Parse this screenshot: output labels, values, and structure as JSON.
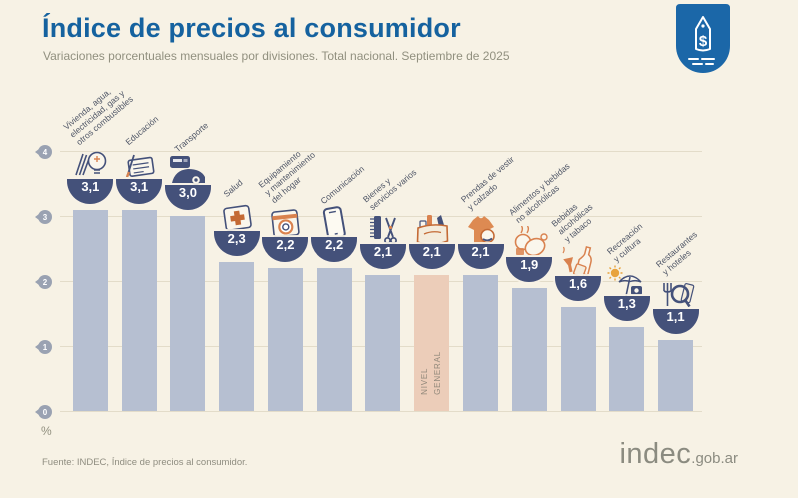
{
  "header": {
    "title": "Índice de precios al consumidor",
    "subtitle": "Variaciones porcentuales mensuales por divisiones. Total nacional. Septiembre de 2025",
    "badge_icon": "price-tag-shield-icon"
  },
  "chart_data": {
    "type": "bar",
    "title": "Índice de precios al consumidor",
    "subtitle": "Variaciones porcentuales mensuales por divisiones. Total nacional. Septiembre de 2025",
    "unit": "%",
    "ylim": [
      0,
      4
    ],
    "yticks_top_down": [
      "4",
      "3",
      "2",
      "1",
      "0"
    ],
    "grid": true,
    "highlight_category": "Nivel general",
    "categories": [
      "Vivienda, agua, electricidad, gas y otros combustibles",
      "Educación",
      "Transporte",
      "Salud",
      "Equipamiento y mantenimiento del hogar",
      "Comunicación",
      "Bienes y servicios varios",
      "Nivel general",
      "Prendas de vestir y calzado",
      "Alimentos y bebidas no alcohólicas",
      "Bebidas alcohólicas y tabaco",
      "Recreación y cultura",
      "Restaurantes y hoteles"
    ],
    "values": [
      3.1,
      3.1,
      3.0,
      2.3,
      2.2,
      2.2,
      2.1,
      2.1,
      2.1,
      1.9,
      1.6,
      1.3,
      1.1
    ],
    "bars": [
      {
        "label": "Vivienda, agua,\nelectricidad, gas y\notros combustibles",
        "value": 3.1,
        "display": "3,1",
        "icon": "housing-utilities-icon",
        "highlight": false
      },
      {
        "label": "Educación",
        "value": 3.1,
        "display": "3,1",
        "icon": "education-icon",
        "highlight": false
      },
      {
        "label": "Transporte",
        "value": 3.0,
        "display": "3,0",
        "icon": "transport-icon",
        "highlight": false
      },
      {
        "label": "Salud",
        "value": 2.3,
        "display": "2,3",
        "icon": "health-icon",
        "highlight": false
      },
      {
        "label": "Equipamiento\ny mantenimiento\ndel hogar",
        "value": 2.2,
        "display": "2,2",
        "icon": "home-equipment-icon",
        "highlight": false
      },
      {
        "label": "Comunicación",
        "value": 2.2,
        "display": "2,2",
        "icon": "communication-icon",
        "highlight": false
      },
      {
        "label": "Bienes y\nservicios varios",
        "value": 2.1,
        "display": "2,1",
        "icon": "goods-services-icon",
        "highlight": false
      },
      {
        "label": "",
        "bar_label": "NIVEL\nGENERAL",
        "value": 2.1,
        "display": "2,1",
        "icon": "general-basket-icon",
        "highlight": true
      },
      {
        "label": "Prendas de vestir\ny calzado",
        "value": 2.1,
        "display": "2,1",
        "icon": "clothing-icon",
        "highlight": false
      },
      {
        "label": "Alimentos y bebidas\nno alcohólicas",
        "value": 1.9,
        "display": "1,9",
        "icon": "food-icon",
        "highlight": false
      },
      {
        "label": "Bebidas\nalcohólicas\ny tabaco",
        "value": 1.6,
        "display": "1,6",
        "icon": "alcohol-tobacco-icon",
        "highlight": false
      },
      {
        "label": "Recreación\ny cultura",
        "value": 1.3,
        "display": "1,3",
        "icon": "recreation-icon",
        "highlight": false
      },
      {
        "label": "Restaurantes\ny hoteles",
        "value": 1.1,
        "display": "1,1",
        "icon": "restaurants-icon",
        "highlight": false
      }
    ],
    "colors": {
      "bar": "#b6bfd1",
      "highlight_bar": "#eccdb9",
      "bowl": "#44517a",
      "value_text": "#ffffff",
      "title": "#15629f",
      "background": "#f7f2e5",
      "accent_orange": "#d9824f",
      "badge_blue": "#1b67a8"
    }
  },
  "axis": {
    "unit_label": "%"
  },
  "footer": {
    "source": "Fuente: INDEC, Índice de precios al consumidor.",
    "logo_main": "indec",
    "logo_suffix": ".gob.ar"
  }
}
